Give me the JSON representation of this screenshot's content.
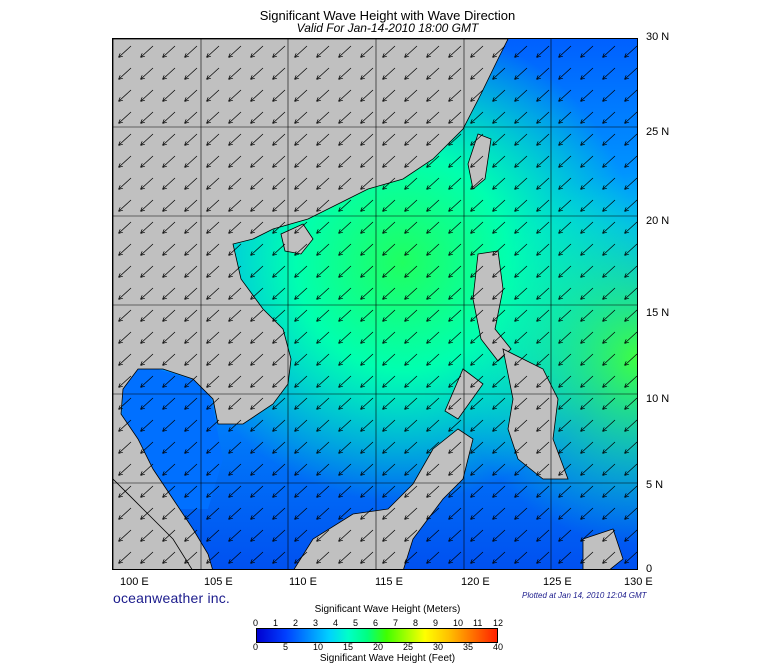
{
  "header": {
    "title": "Significant Wave Height with Wave Direction",
    "valid": "Valid For Jan-14-2010 18:00 GMT"
  },
  "map": {
    "lat_labels": [
      "30 N",
      "25 N",
      "20 N",
      "15 N",
      "10 N",
      "5 N",
      "0"
    ],
    "lon_labels": [
      "100 E",
      "105 E",
      "110 E",
      "115 E",
      "120 E",
      "125 E",
      "130 E"
    ],
    "lon_range": [
      100,
      130
    ],
    "lat_range": [
      0,
      30
    ],
    "land_color": "#c0c0c0",
    "grid_on": true
  },
  "footer": {
    "brand": "oceanweather inc.",
    "plotted": "Plotted at Jan 14, 2010 12:04 GMT"
  },
  "legend": {
    "title_meters": "Significant Wave Height (Meters)",
    "title_feet": "Significant Wave Height (Feet)",
    "meters_ticks": [
      "0",
      "1",
      "2",
      "3",
      "4",
      "5",
      "6",
      "7",
      "8",
      "9",
      "10",
      "11",
      "12"
    ],
    "feet_ticks": [
      "0",
      "5",
      "10",
      "15",
      "20",
      "25",
      "30",
      "35",
      "40"
    ]
  }
}
